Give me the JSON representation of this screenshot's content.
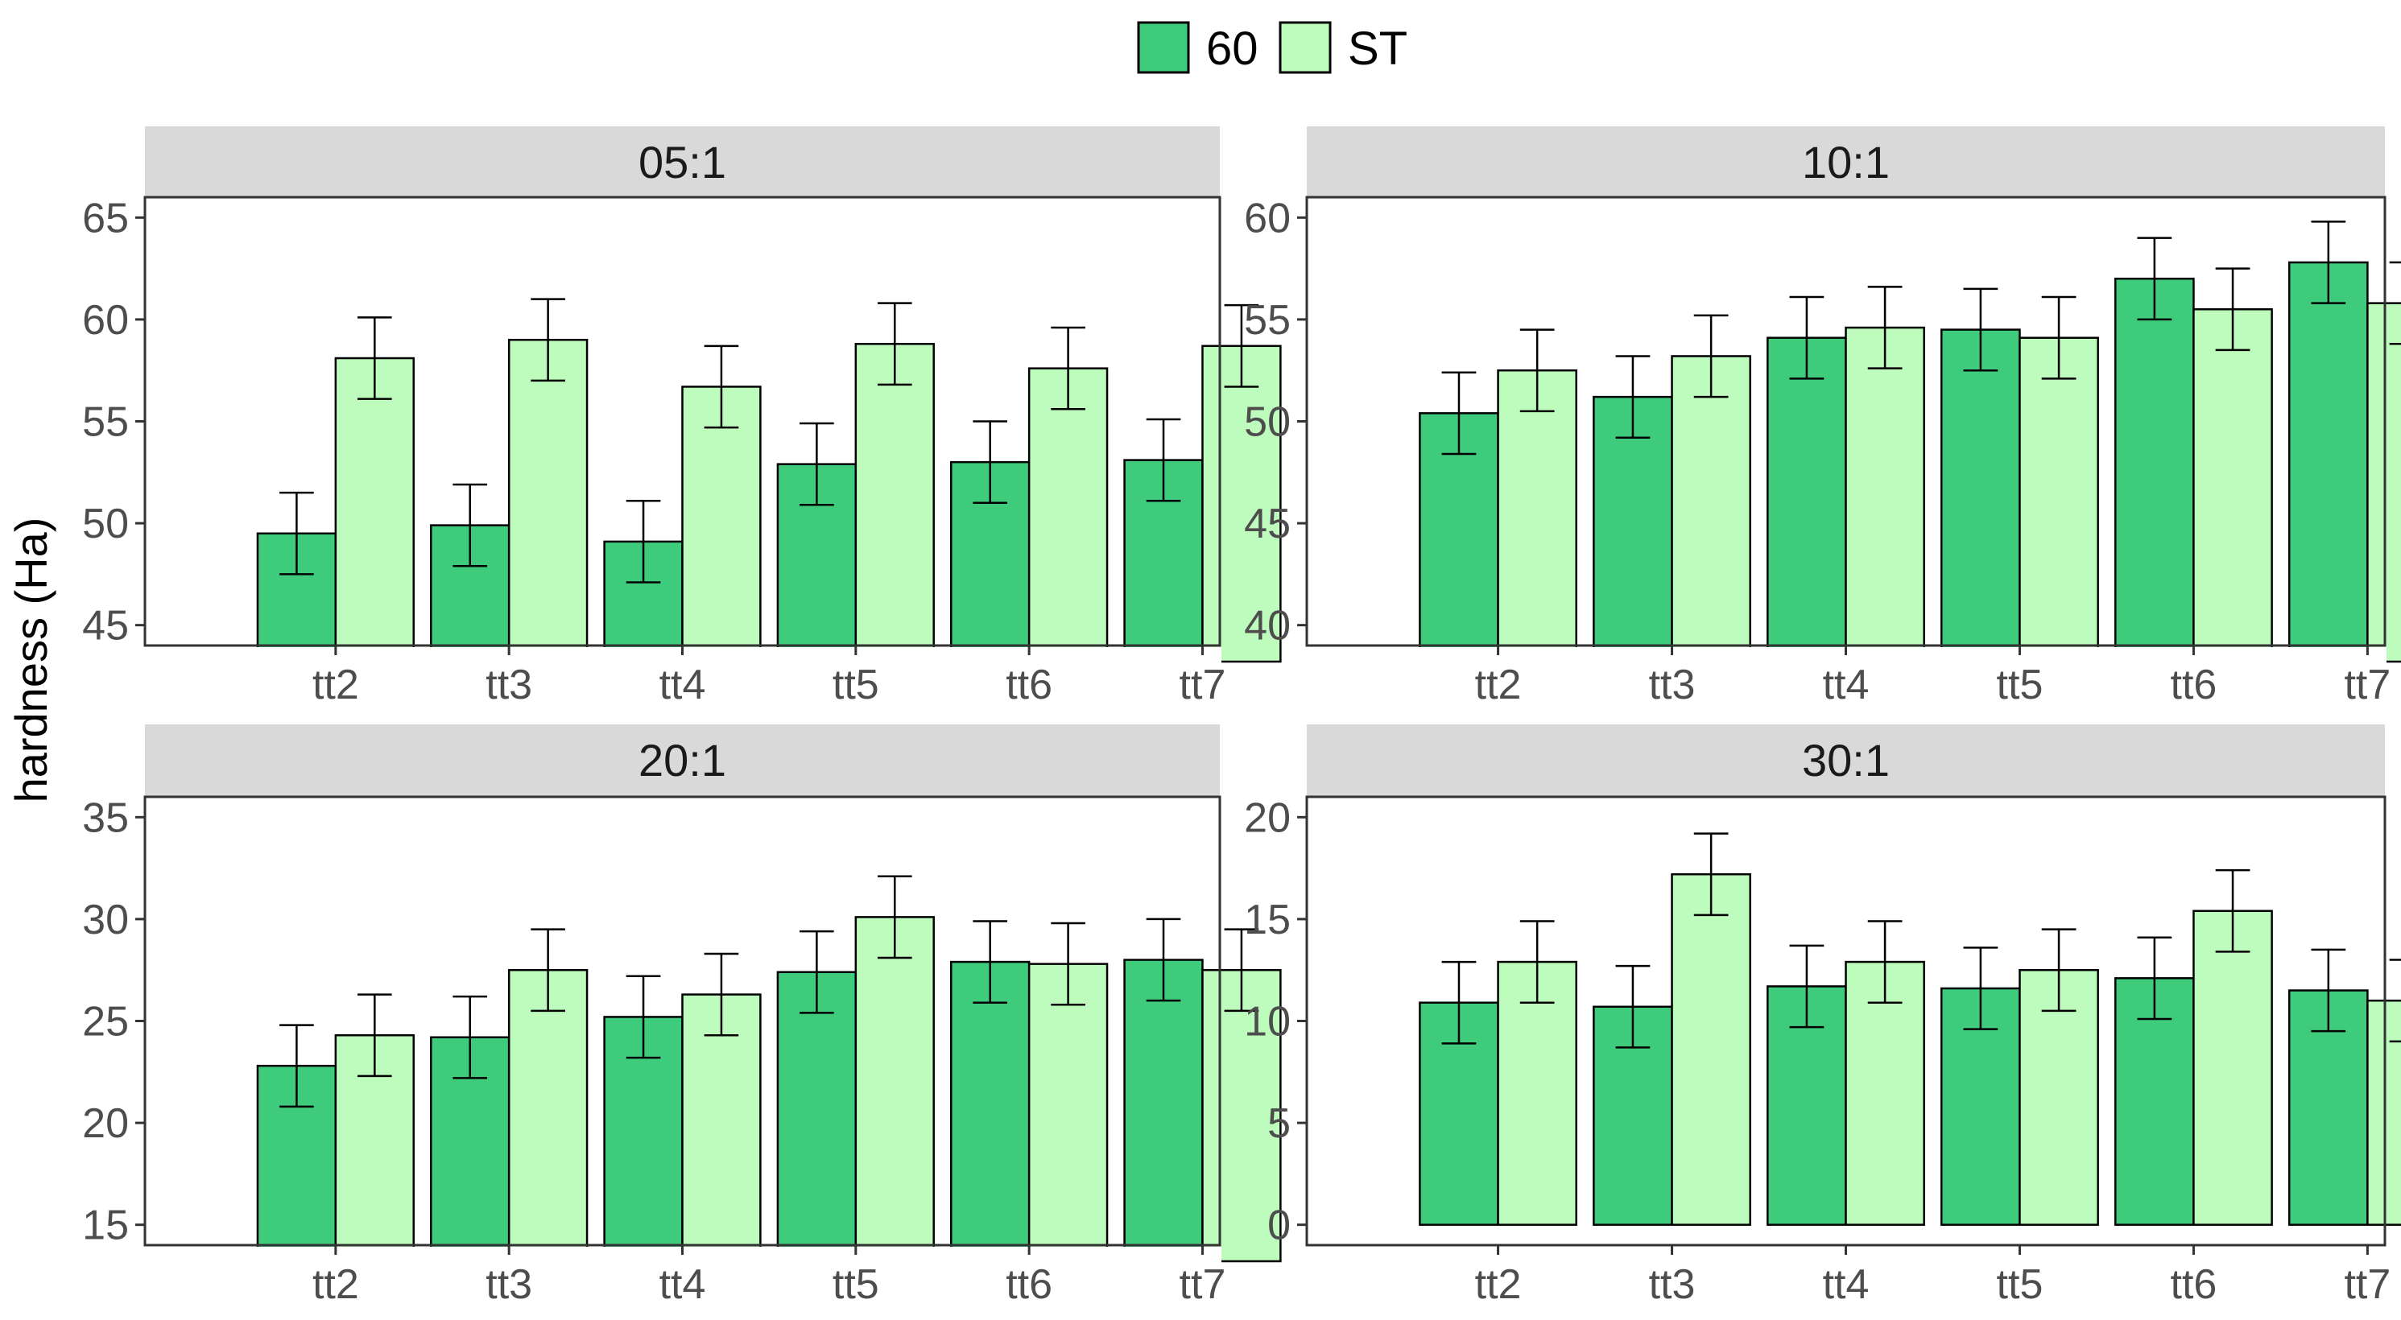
{
  "chart_data": {
    "type": "bar",
    "ylabel": "hardness (Ha)",
    "legend": {
      "position": "top",
      "items": [
        {
          "name": "60",
          "color": "#3ecc7c"
        },
        {
          "name": "ST",
          "color": "#bdfcbd"
        }
      ]
    },
    "categories": [
      "tt2",
      "tt3",
      "tt4",
      "tt5",
      "tt6",
      "tt7"
    ],
    "panels": [
      {
        "title": "05:1",
        "ylim": [
          44,
          66
        ],
        "yticks": [
          45,
          50,
          55,
          60,
          65
        ],
        "series": [
          {
            "name": "60",
            "values": [
              49.5,
              49.9,
              49.1,
              52.9,
              53.0,
              53.1
            ],
            "errors": [
              2.0,
              2.0,
              2.0,
              2.0,
              2.0,
              2.0
            ]
          },
          {
            "name": "ST",
            "values": [
              58.1,
              59.0,
              56.7,
              58.8,
              57.6,
              58.7
            ],
            "errors": [
              2.0,
              2.0,
              2.0,
              2.0,
              2.0,
              2.0
            ]
          }
        ]
      },
      {
        "title": "10:1",
        "ylim": [
          39,
          61
        ],
        "yticks": [
          40,
          45,
          50,
          55,
          60
        ],
        "series": [
          {
            "name": "60",
            "values": [
              50.4,
              51.2,
              54.1,
              54.5,
              57.0,
              57.8
            ],
            "errors": [
              2.0,
              2.0,
              2.0,
              2.0,
              2.0,
              2.0
            ]
          },
          {
            "name": "ST",
            "values": [
              52.5,
              53.2,
              54.6,
              54.1,
              55.5,
              55.8
            ],
            "errors": [
              2.0,
              2.0,
              2.0,
              2.0,
              2.0,
              2.0
            ]
          }
        ]
      },
      {
        "title": "20:1",
        "ylim": [
          14,
          36
        ],
        "yticks": [
          15,
          20,
          25,
          30,
          35
        ],
        "series": [
          {
            "name": "60",
            "values": [
              22.8,
              24.2,
              25.2,
              27.4,
              27.9,
              28.0
            ],
            "errors": [
              2.0,
              2.0,
              2.0,
              2.0,
              2.0,
              2.0
            ]
          },
          {
            "name": "ST",
            "values": [
              24.3,
              27.5,
              26.3,
              30.1,
              27.8,
              27.5
            ],
            "errors": [
              2.0,
              2.0,
              2.0,
              2.0,
              2.0,
              2.0
            ]
          }
        ]
      },
      {
        "title": "30:1",
        "ylim": [
          -1,
          21
        ],
        "yticks": [
          0,
          5,
          10,
          15,
          20
        ],
        "series": [
          {
            "name": "60",
            "values": [
              10.9,
              10.7,
              11.7,
              11.6,
              12.1,
              11.5
            ],
            "errors": [
              2.0,
              2.0,
              2.0,
              2.0,
              2.0,
              2.0
            ]
          },
          {
            "name": "ST",
            "values": [
              12.9,
              17.2,
              12.9,
              12.5,
              15.4,
              11.0
            ],
            "errors": [
              2.0,
              2.0,
              2.0,
              2.0,
              2.0,
              2.0
            ]
          }
        ]
      }
    ]
  }
}
